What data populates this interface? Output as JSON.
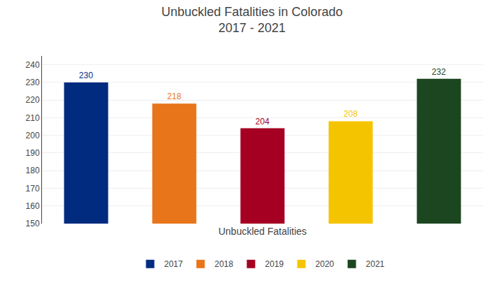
{
  "chart_data": {
    "type": "bar",
    "title": "Unbuckled Fatalities in Colorado",
    "subtitle": "2017 - 2021",
    "xlabel": "Unbuckled Fatalities",
    "categories": [
      "2017",
      "2018",
      "2019",
      "2020",
      "2021"
    ],
    "values": [
      230,
      218,
      204,
      208,
      232
    ],
    "colors": [
      "#002B7F",
      "#E8751A",
      "#A50021",
      "#F5C400",
      "#1B4620"
    ],
    "ylim": [
      150,
      245
    ],
    "yticks": [
      150,
      160,
      170,
      180,
      190,
      200,
      210,
      220,
      230,
      240
    ],
    "grid": true,
    "legend": "bottom",
    "data_labels": true,
    "tick_labels": "y"
  }
}
